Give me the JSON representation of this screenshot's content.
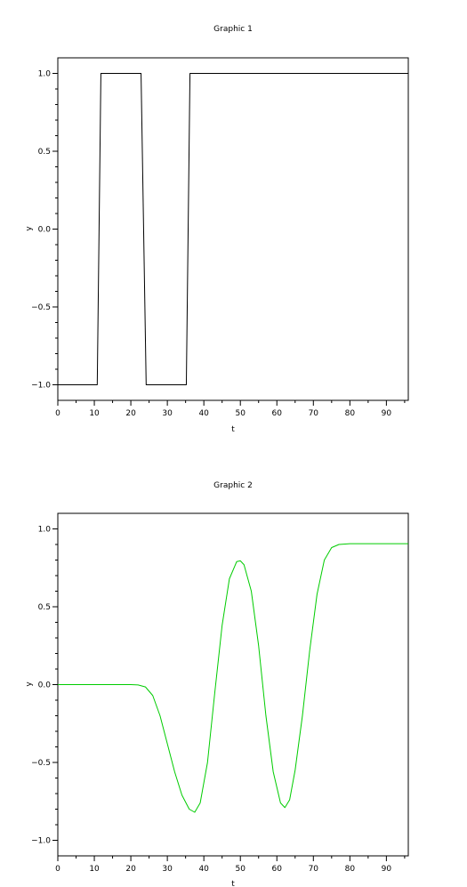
{
  "chart_data": [
    {
      "type": "line",
      "title": "Graphic 1",
      "xlabel": "t",
      "ylabel": "y",
      "xlim": [
        0,
        96
      ],
      "ylim": [
        -1.1,
        1.1
      ],
      "xticks": [
        0,
        10,
        20,
        30,
        40,
        50,
        60,
        70,
        80,
        90
      ],
      "yticks": [
        -1.0,
        -0.5,
        0.0,
        0.5,
        1.0
      ],
      "ytick_labels": [
        "−1.0",
        "−0.5",
        "0.0",
        "0.5",
        "1.0"
      ],
      "grid": false,
      "series": [
        {
          "color": "#000000",
          "x": [
            0,
            10.8,
            11.8,
            22.8,
            24.2,
            35.2,
            36.2,
            96
          ],
          "y": [
            -1.0,
            -1.0,
            1.0,
            1.0,
            -1.0,
            -1.0,
            1.0,
            1.0
          ]
        }
      ]
    },
    {
      "type": "line",
      "title": "Graphic 2",
      "xlabel": "t",
      "ylabel": "y",
      "xlim": [
        0,
        96
      ],
      "ylim": [
        -1.1,
        1.1
      ],
      "xticks": [
        0,
        10,
        20,
        30,
        40,
        50,
        60,
        70,
        80,
        90
      ],
      "yticks": [
        -1.0,
        -0.5,
        0.0,
        0.5,
        1.0
      ],
      "ytick_labels": [
        "−1.0",
        "−0.5",
        "0.0",
        "0.5",
        "1.0"
      ],
      "grid": false,
      "series": [
        {
          "color": "#00cc00",
          "x": [
            0,
            20,
            22,
            24,
            26,
            28,
            30,
            32,
            34,
            36,
            37.5,
            39,
            41,
            43,
            45,
            47,
            49,
            50,
            51,
            53,
            55,
            57,
            59,
            61,
            62.2,
            63.5,
            65,
            67,
            69,
            71,
            73,
            75,
            77,
            80,
            85,
            90,
            96
          ],
          "y": [
            0,
            0,
            -0.002,
            -0.015,
            -0.07,
            -0.2,
            -0.38,
            -0.56,
            -0.71,
            -0.8,
            -0.82,
            -0.76,
            -0.5,
            -0.05,
            0.38,
            0.68,
            0.79,
            0.795,
            0.77,
            0.6,
            0.25,
            -0.2,
            -0.56,
            -0.76,
            -0.79,
            -0.74,
            -0.55,
            -0.2,
            0.22,
            0.58,
            0.8,
            0.88,
            0.9,
            0.905,
            0.905,
            0.905,
            0.905
          ]
        }
      ]
    }
  ]
}
